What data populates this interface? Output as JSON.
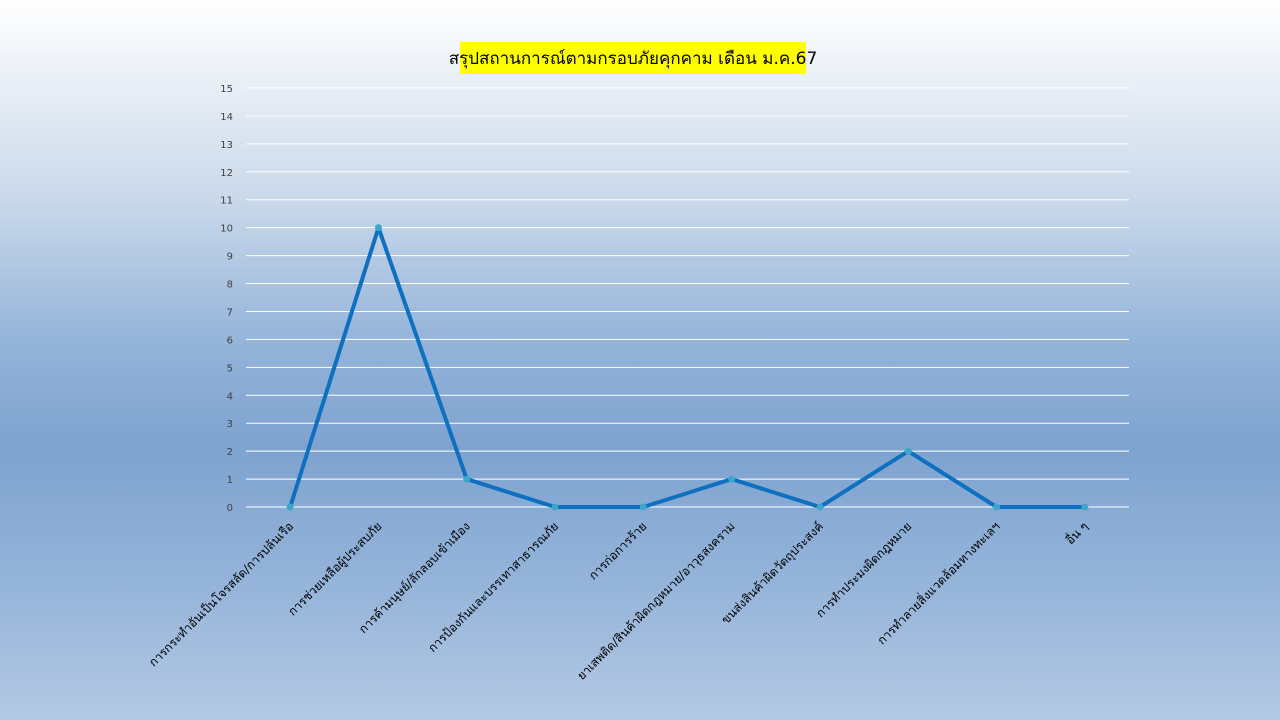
{
  "chart_data": {
    "type": "line",
    "title": "สรุปสถานการณ์ตามกรอบภัยคุกคาม เดือน ม.ค.67",
    "categories": [
      "การกระทำอันเป็นโจรสลัด/การปล้นเรือ",
      "การช่วยเหลือผู้ประสบภัย",
      "การค้ามนุษย์/ลักลอบเข้าเมือง",
      "การป้องกันและบรรเทาสาธารณภัย",
      "การก่อการร้าย",
      "ยาเสพติด/สินค้าผิดกฎหมาย/อาวุธสงคราม",
      "ขนส่งสินค้าผิดวัตถุประสงค์",
      "การทำประมงผิดกฎหมาย",
      "การทำลายสิ่งแวดล้อมทางทะเลฯ",
      "อื่น ๆ"
    ],
    "values": [
      0,
      10,
      1,
      0,
      0,
      1,
      0,
      2,
      0,
      0
    ],
    "yticks": [
      0,
      1,
      2,
      3,
      4,
      5,
      6,
      7,
      8,
      9,
      10,
      11,
      12,
      13,
      14,
      15
    ],
    "ylim": [
      0,
      15
    ],
    "grid": true,
    "legend": "none",
    "colors": {
      "line": "#0f70c0",
      "marker": "#3ea6c8",
      "grid": "#ffffff",
      "title_bg": "#ffff00"
    }
  }
}
